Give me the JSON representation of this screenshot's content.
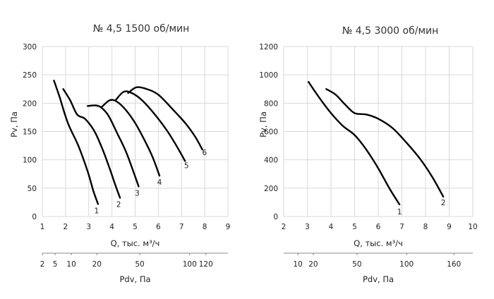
{
  "chart_data": [
    {
      "type": "line",
      "title": "№ 4,5 1500 об/мин",
      "xlabel": "Q, тыс. м³/ч",
      "ylabel": "Pv, Па",
      "xlim": [
        1,
        9
      ],
      "ylim": [
        0,
        300
      ],
      "xticks": [
        1,
        2,
        3,
        4,
        5,
        6,
        7,
        8,
        9
      ],
      "yticks": [
        0,
        50,
        100,
        150,
        200,
        250,
        300
      ],
      "grid": true,
      "pdv_label": "Pdv, Па",
      "pdv_ticks": [
        {
          "label": "2",
          "q": 1.0
        },
        {
          "label": "5",
          "q": 1.55
        },
        {
          "label": "10",
          "q": 2.25
        },
        {
          "label": "20",
          "q": 3.35
        },
        {
          "label": "50",
          "q": 5.2
        },
        {
          "label": "100",
          "q": 7.35
        },
        {
          "label": "120",
          "q": 8.05
        }
      ],
      "series": [
        {
          "name": "1",
          "x": [
            1.5,
            1.75,
            2.1,
            2.55,
            2.95,
            3.2,
            3.4
          ],
          "y": [
            240,
            210,
            165,
            125,
            80,
            45,
            22
          ]
        },
        {
          "name": "2",
          "x": [
            1.9,
            2.2,
            2.5,
            2.85,
            3.25,
            3.6,
            3.9,
            4.15,
            4.35
          ],
          "y": [
            225,
            205,
            180,
            172,
            150,
            118,
            85,
            55,
            33
          ]
        },
        {
          "name": "3",
          "x": [
            2.95,
            3.3,
            3.55,
            3.85,
            4.25,
            4.6,
            4.9,
            5.15
          ],
          "y": [
            195,
            196,
            192,
            178,
            145,
            115,
            82,
            53
          ]
        },
        {
          "name": "4",
          "x": [
            3.55,
            3.9,
            4.2,
            4.6,
            5.0,
            5.4,
            5.75,
            6.05
          ],
          "y": [
            193,
            205,
            203,
            188,
            165,
            135,
            105,
            72
          ]
        },
        {
          "name": "5",
          "x": [
            4.15,
            4.5,
            4.85,
            5.3,
            5.85,
            6.4,
            6.85,
            7.15
          ],
          "y": [
            205,
            220,
            218,
            205,
            180,
            150,
            120,
            98
          ]
        },
        {
          "name": "6",
          "x": [
            4.7,
            5.05,
            5.5,
            6.0,
            6.6,
            7.2,
            7.6,
            7.9
          ],
          "y": [
            218,
            228,
            225,
            215,
            190,
            163,
            140,
            118
          ]
        }
      ]
    },
    {
      "type": "line",
      "title": "№ 4,5 3000 об/мин",
      "xlabel": "Q, тыс. м³/ч",
      "ylabel": "Pv, Па",
      "xlim": [
        2,
        10
      ],
      "ylim": [
        0,
        1200
      ],
      "xticks": [
        2,
        3,
        4,
        5,
        6,
        7,
        8,
        9,
        10
      ],
      "yticks": [
        0,
        200,
        400,
        600,
        800,
        1000,
        1200
      ],
      "grid": true,
      "pdv_label": "Pdv, Па",
      "pdv_ticks": [
        {
          "label": "10",
          "q": 2.6
        },
        {
          "label": "20",
          "q": 3.25
        },
        {
          "label": "50",
          "q": 5.1
        },
        {
          "label": "100",
          "q": 7.2
        },
        {
          "label": "160",
          "q": 9.2
        }
      ],
      "series": [
        {
          "name": "1",
          "x": [
            3.05,
            3.5,
            4.0,
            4.5,
            5.0,
            5.5,
            6.0,
            6.5,
            6.9
          ],
          "y": [
            950,
            840,
            730,
            640,
            575,
            470,
            340,
            190,
            85
          ]
        },
        {
          "name": "2",
          "x": [
            3.8,
            4.2,
            4.6,
            5.0,
            5.5,
            6.0,
            6.6,
            7.2,
            7.8,
            8.3,
            8.75
          ],
          "y": [
            900,
            860,
            790,
            730,
            720,
            690,
            625,
            520,
            400,
            275,
            140
          ]
        }
      ]
    }
  ]
}
